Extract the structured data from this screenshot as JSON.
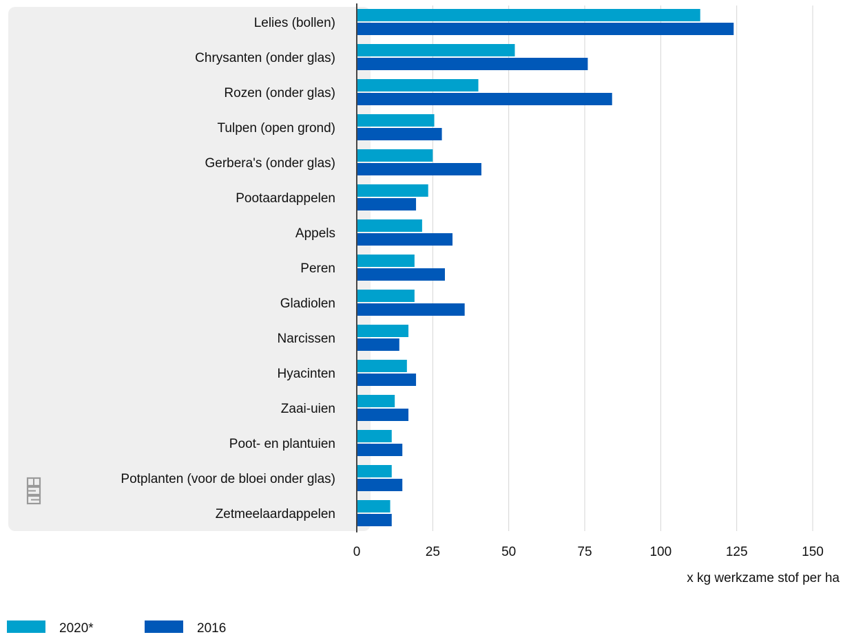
{
  "chart_data": {
    "type": "bar",
    "orientation": "horizontal",
    "categories": [
      "Lelies (bollen)",
      "Chrysanten (onder glas)",
      "Rozen (onder glas)",
      "Tulpen (open grond)",
      "Gerbera's (onder glas)",
      "Pootaardappelen",
      "Appels",
      "Peren",
      "Gladiolen",
      "Narcissen",
      "Hyacinten",
      "Zaai-uien",
      "Poot- en plantuien",
      "Potplanten (voor de bloei onder glas)",
      "Zetmeelaardappelen"
    ],
    "series": [
      {
        "name": "2020*",
        "color": "#00a1cd",
        "values": [
          113,
          52,
          40,
          25.5,
          25,
          23.5,
          21.5,
          19,
          19,
          17,
          16.5,
          12.5,
          11.5,
          11.5,
          11
        ]
      },
      {
        "name": "2016",
        "color": "#0058b8",
        "values": [
          124,
          76,
          84,
          28,
          41,
          19.5,
          31.5,
          29,
          35.5,
          14,
          19.5,
          17,
          15,
          15,
          11.5
        ]
      }
    ],
    "xlim": [
      0,
      150
    ],
    "xticks": [
      "0",
      "25",
      "50",
      "75",
      "100",
      "125",
      "150"
    ],
    "xlabel": "x kg werkzame stof per ha",
    "grid": true,
    "legend_position": "bottom-left"
  },
  "colors": {
    "panel": "#efefef",
    "grid": "#d4d4d4",
    "axis": "#444444"
  },
  "icons": {
    "logo": "cbs-logo-icon"
  }
}
